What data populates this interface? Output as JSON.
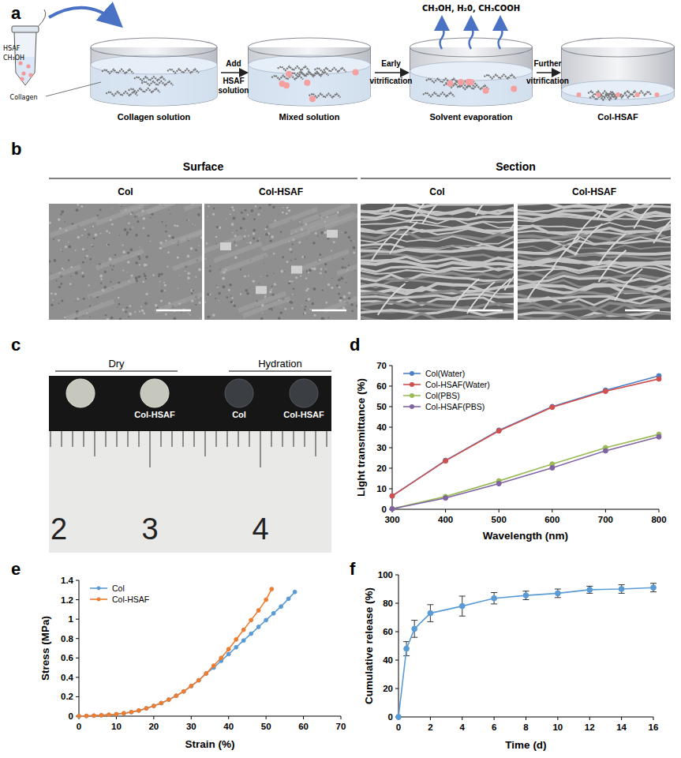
{
  "panels": {
    "a": {
      "label": "a",
      "reagent_tube": [
        "HSAF",
        "CH₃OH"
      ],
      "collagen_label": "Collagen",
      "steps": [
        "Collagen solution",
        "Mixed solution",
        "Solvent evaporation",
        "Col-HSAF"
      ],
      "transitions": [
        [
          "Add",
          "HSAF",
          "solution"
        ],
        [
          "Early",
          "vitrification"
        ],
        [
          "Further",
          "vitrification"
        ]
      ],
      "evaporated": "CH₃OH, H₂0, CH₃COOH"
    },
    "b": {
      "label": "b",
      "groups": [
        {
          "title": "Surface",
          "images": [
            "Col",
            "Col-HSAF"
          ]
        },
        {
          "title": "Section",
          "images": [
            "Col",
            "Col-HSAF"
          ]
        }
      ]
    },
    "c": {
      "label": "c",
      "groups": [
        {
          "title": "Dry",
          "samples": [
            null,
            "Col-HSAF"
          ]
        },
        {
          "title": "Hydration",
          "samples": [
            "Col",
            "Col-HSAF"
          ]
        }
      ],
      "ruler_numbers": [
        2,
        3,
        4
      ]
    }
  },
  "chart_data": [
    {
      "panel": "d",
      "type": "line",
      "x_label": "Wavelength (nm)",
      "y_label": "Light transmittance (%)",
      "x": [
        300,
        400,
        500,
        600,
        700,
        800
      ],
      "series": [
        {
          "name": "Col(Water)",
          "color": "#4f7fc7",
          "marker": "circle",
          "values": [
            6.5,
            23.8,
            38.5,
            50,
            58,
            65
          ]
        },
        {
          "name": "Col-HSAF(Water)",
          "color": "#d0504d",
          "marker": "circle",
          "values": [
            6.5,
            23.6,
            38.2,
            49.7,
            57.5,
            63.5
          ]
        },
        {
          "name": "Col(PBS)",
          "color": "#9bbb59",
          "marker": "circle",
          "values": [
            0.3,
            6.2,
            13.8,
            22,
            30,
            36.5
          ]
        },
        {
          "name": "Col-HSAF(PBS)",
          "color": "#8064a2",
          "marker": "circle",
          "values": [
            0.2,
            5.5,
            12.5,
            20.2,
            28.5,
            35.3
          ]
        }
      ],
      "xlim": [
        300,
        800
      ],
      "xticks": [
        300,
        400,
        500,
        600,
        700,
        800
      ],
      "ylim": [
        0,
        70
      ],
      "yticks": [
        0,
        10,
        20,
        30,
        40,
        50,
        60,
        70
      ],
      "legend": "upper left",
      "grid": false
    },
    {
      "panel": "e",
      "type": "line",
      "x_label": "Strain (%)",
      "y_label": "Stress (MPa)",
      "series": [
        {
          "name": "Col",
          "color": "#5b9bd5",
          "marker": "circle",
          "x": [
            0,
            2,
            4,
            6,
            8,
            10,
            12,
            14,
            16,
            18,
            20,
            22,
            24,
            26,
            28,
            30,
            32,
            34,
            36,
            38,
            40,
            42,
            44,
            46,
            48,
            50,
            52,
            54,
            56,
            57.7
          ],
          "values": [
            0,
            0.002,
            0.005,
            0.009,
            0.014,
            0.02,
            0.03,
            0.042,
            0.058,
            0.08,
            0.105,
            0.135,
            0.17,
            0.21,
            0.255,
            0.31,
            0.37,
            0.44,
            0.5,
            0.57,
            0.64,
            0.71,
            0.78,
            0.85,
            0.92,
            0.99,
            1.06,
            1.13,
            1.21,
            1.28
          ]
        },
        {
          "name": "Col-HSAF",
          "color": "#ed7d31",
          "marker": "circle",
          "x": [
            0,
            2,
            4,
            6,
            8,
            10,
            12,
            14,
            16,
            18,
            20,
            22,
            24,
            26,
            28,
            30,
            32,
            34,
            36,
            38,
            40,
            42,
            44,
            46,
            48,
            50,
            51.5
          ],
          "values": [
            0,
            0.002,
            0.005,
            0.009,
            0.014,
            0.02,
            0.03,
            0.042,
            0.058,
            0.08,
            0.105,
            0.135,
            0.17,
            0.21,
            0.255,
            0.31,
            0.37,
            0.44,
            0.52,
            0.6,
            0.69,
            0.79,
            0.89,
            0.99,
            1.09,
            1.2,
            1.31
          ]
        }
      ],
      "xlim": [
        0,
        70
      ],
      "xticks": [
        0,
        10,
        20,
        30,
        40,
        50,
        60,
        70
      ],
      "ylim": [
        0,
        1.4
      ],
      "yticks": [
        0,
        0.2,
        0.4,
        0.6,
        0.8,
        1,
        1.2,
        1.4
      ],
      "legend": "upper left",
      "grid": false
    },
    {
      "panel": "f",
      "type": "line",
      "x_label": "Time (d)",
      "y_label": "Cumulative release (%)",
      "x": [
        0,
        0.5,
        1,
        2,
        4,
        6,
        8,
        10,
        12,
        14,
        16
      ],
      "series": [
        {
          "color": "#5b9bd5",
          "marker": "circle",
          "values": [
            0,
            48,
            62,
            73,
            78,
            83.5,
            85.5,
            87,
            89.5,
            90,
            91
          ],
          "errors": [
            0,
            5,
            6,
            6,
            7,
            4,
            3,
            3,
            2.5,
            3,
            3
          ]
        }
      ],
      "xlim": [
        0,
        16
      ],
      "xticks": [
        0,
        2,
        4,
        6,
        8,
        10,
        12,
        14,
        16
      ],
      "ylim": [
        0,
        100
      ],
      "yticks": [
        0,
        20,
        40,
        60,
        80,
        100
      ],
      "grid": false
    }
  ]
}
